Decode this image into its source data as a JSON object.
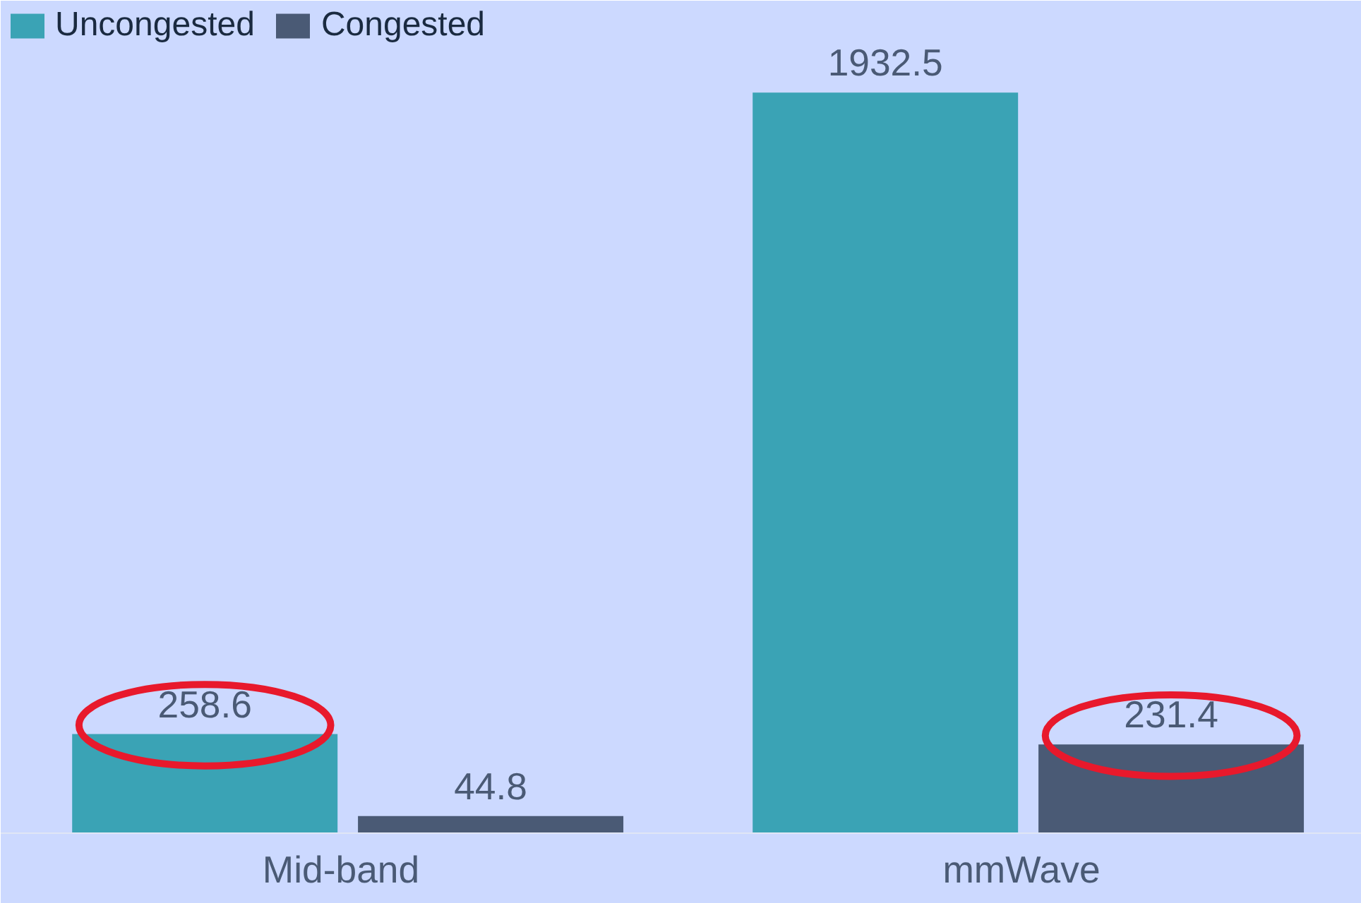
{
  "chart_data": {
    "type": "bar",
    "categories": [
      "Mid-band",
      "mmWave"
    ],
    "series": [
      {
        "name": "Uncongested",
        "color": "#3aa3b5",
        "values": [
          258.6,
          1932.5
        ]
      },
      {
        "name": "Congested",
        "color": "#4a5a75",
        "values": [
          44.8,
          231.4
        ]
      }
    ],
    "data_labels": true,
    "legend": "top left",
    "grid": false
  }
}
